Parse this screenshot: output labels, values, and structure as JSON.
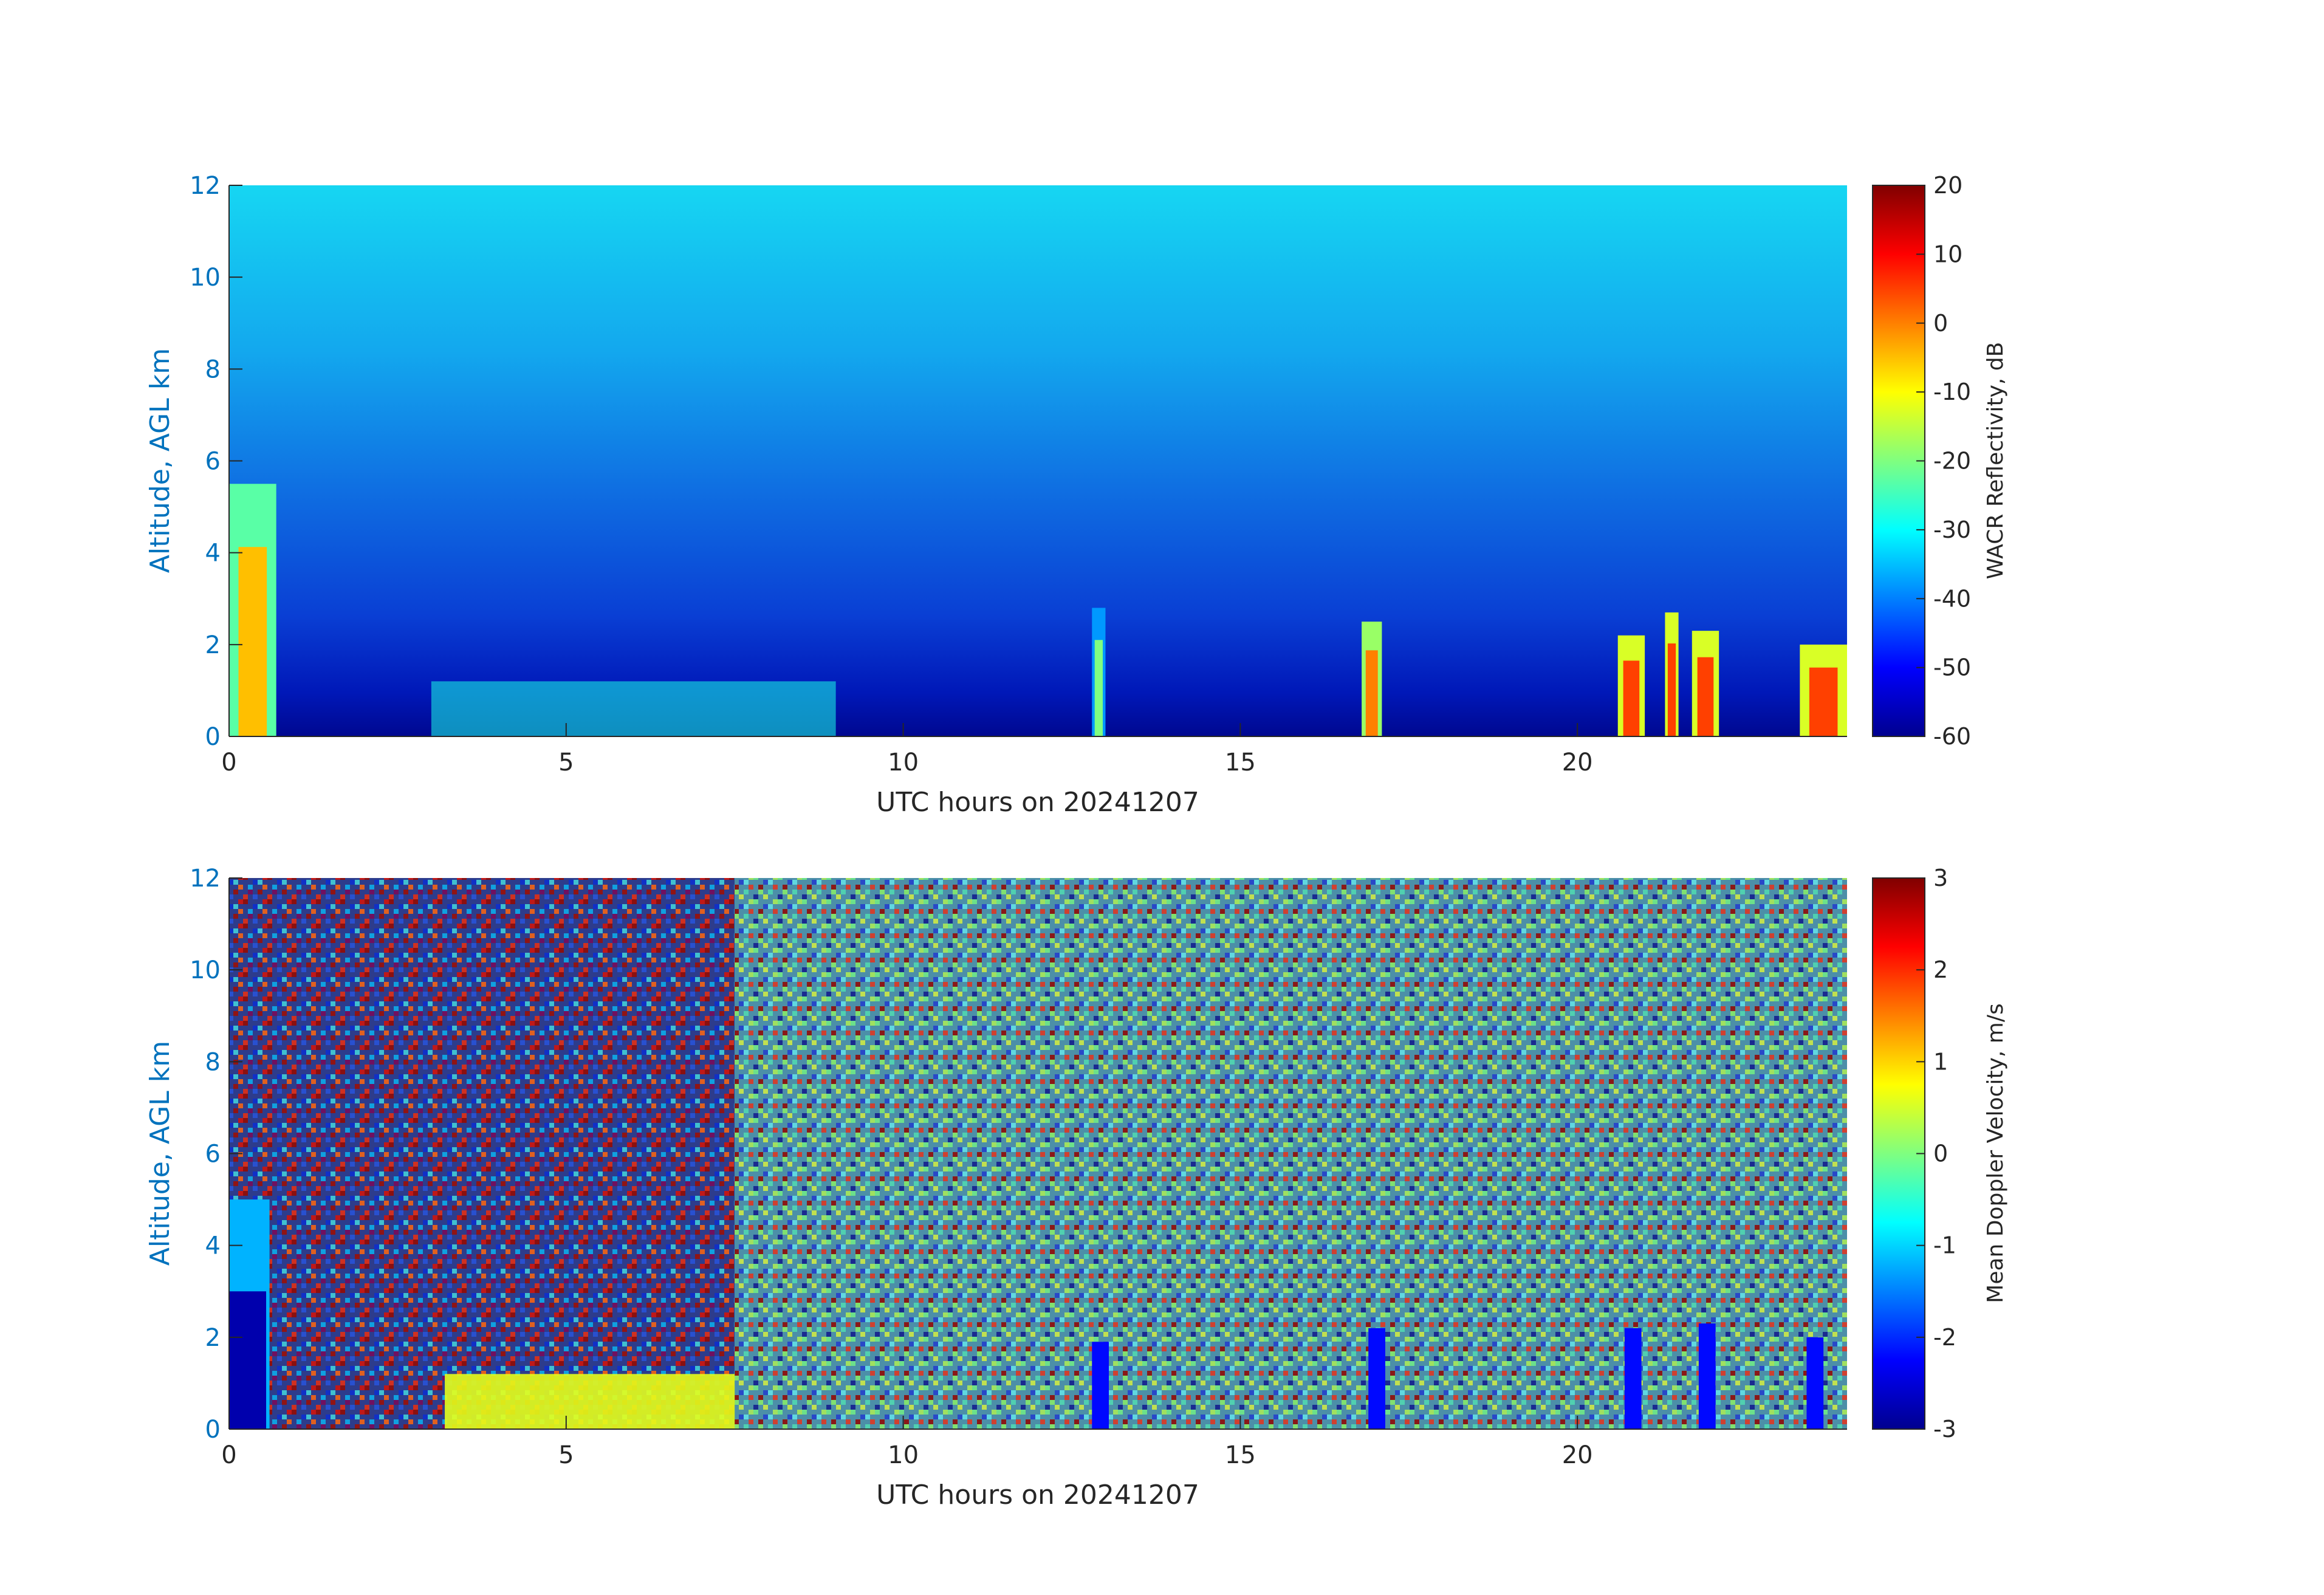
{
  "chart_data": [
    {
      "type": "heatmap",
      "xlabel": "UTC hours on 20241207",
      "ylabel": "Altitude, AGL km",
      "xlim": [
        0,
        24
      ],
      "ylim": [
        0,
        12
      ],
      "xticks": [
        0,
        5,
        10,
        15,
        20
      ],
      "yticks": [
        0,
        2,
        4,
        6,
        8,
        10,
        12
      ],
      "colorbar": {
        "label": "WACR Reflectivity, dB",
        "range": [
          -60,
          20
        ],
        "ticks": [
          20,
          10,
          0,
          -10,
          -20,
          -30,
          -40,
          -50,
          -60
        ],
        "colormap": "jet"
      },
      "features": {
        "background_top_db": -33,
        "background_bottom_db": -52,
        "cloud_columns": [
          {
            "x": [
              0.0,
              0.7
            ],
            "top_km": 5.5,
            "db": -5
          },
          {
            "x": [
              12.8,
              13.0
            ],
            "top_km": 2.8,
            "db": -20
          },
          {
            "x": [
              16.8,
              17.1
            ],
            "top_km": 2.5,
            "db": 0
          },
          {
            "x": [
              20.6,
              21.0
            ],
            "top_km": 2.2,
            "db": 5
          },
          {
            "x": [
              21.3,
              21.5
            ],
            "top_km": 2.7,
            "db": 5
          },
          {
            "x": [
              21.7,
              22.1
            ],
            "top_km": 2.3,
            "db": 5
          },
          {
            "x": [
              23.3,
              24.0
            ],
            "top_km": 2.0,
            "db": 5
          }
        ],
        "low_layer": {
          "x": [
            3.0,
            9.0
          ],
          "top_km": 1.2,
          "db": -28
        }
      }
    },
    {
      "type": "heatmap",
      "xlabel": "UTC hours on 20241207",
      "ylabel": "Altitude, AGL km",
      "xlim": [
        0,
        24
      ],
      "ylim": [
        0,
        12
      ],
      "xticks": [
        0,
        5,
        10,
        15,
        20
      ],
      "yticks": [
        0,
        2,
        4,
        6,
        8,
        10,
        12
      ],
      "colorbar": {
        "label": "Mean Doppler Velocity, m/s",
        "range": [
          -3,
          3
        ],
        "ticks": [
          3,
          2,
          1,
          0,
          -1,
          -2,
          -3
        ],
        "colormap": "jet"
      },
      "features": {
        "noise_regime_change_hour": 7.5,
        "early_cloud_velocity_ms": -2.8,
        "low_layer_velocity_ms": 0.6
      }
    }
  ],
  "colors": {
    "axis_label": "#0072BD",
    "tick_label": "#262626",
    "axis_line": "#262626"
  }
}
